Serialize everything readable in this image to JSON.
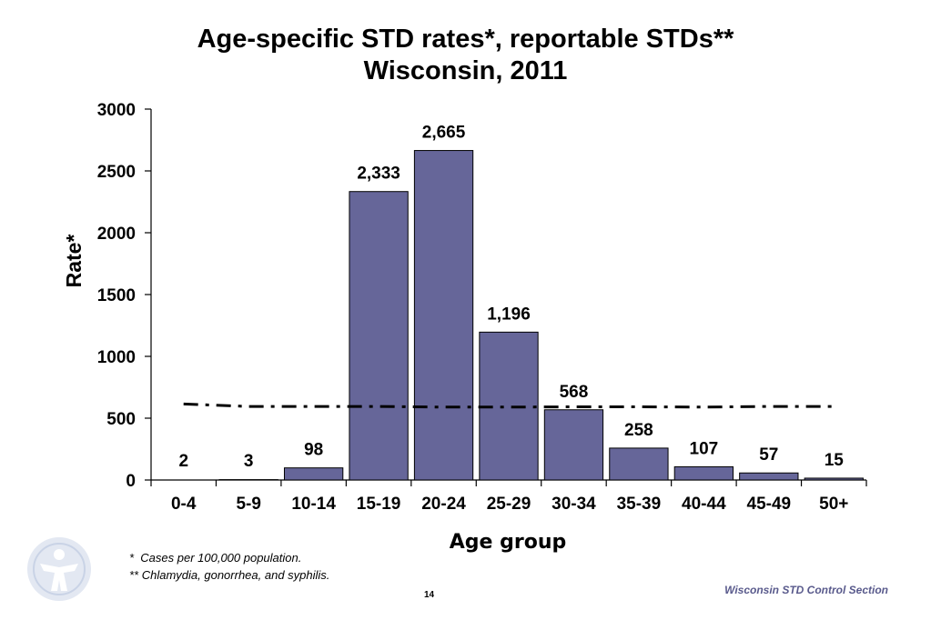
{
  "chart_data": {
    "type": "bar",
    "title": [
      "Age-specific STD rates*, reportable STDs**",
      "Wisconsin, 2011"
    ],
    "xlabel": "Age group",
    "ylabel": "Rate*",
    "ylim": [
      0,
      3000
    ],
    "yticks": [
      "0",
      "500",
      "1000",
      "1500",
      "2000",
      "2500",
      "3000"
    ],
    "categories": [
      "0-4",
      "5-9",
      "10-14",
      "15-19",
      "20-24",
      "25-29",
      "30-34",
      "35-39",
      "40-44",
      "45-49",
      "50+"
    ],
    "values": [
      2,
      3,
      98,
      2333,
      2665,
      1196,
      568,
      258,
      107,
      57,
      15
    ],
    "data_labels": [
      "2",
      "3",
      "98",
      "2,333",
      "2,665",
      "1,196",
      "568",
      "258",
      "107",
      "57",
      "15"
    ],
    "reference_line": {
      "style": "dash-dot",
      "values": [
        615,
        595,
        595,
        595,
        590,
        590,
        592,
        592,
        590,
        595,
        595
      ]
    },
    "grid": false,
    "legend": "none",
    "bar_color": "#666699"
  },
  "footnotes": [
    "*  Cases per 100,000 population.",
    "** Chlamydia, gonorrhea, and syphilis."
  ],
  "page_number": "14",
  "source": "Wisconsin STD Control Section",
  "logo_icon": "person-globe-logo-icon"
}
